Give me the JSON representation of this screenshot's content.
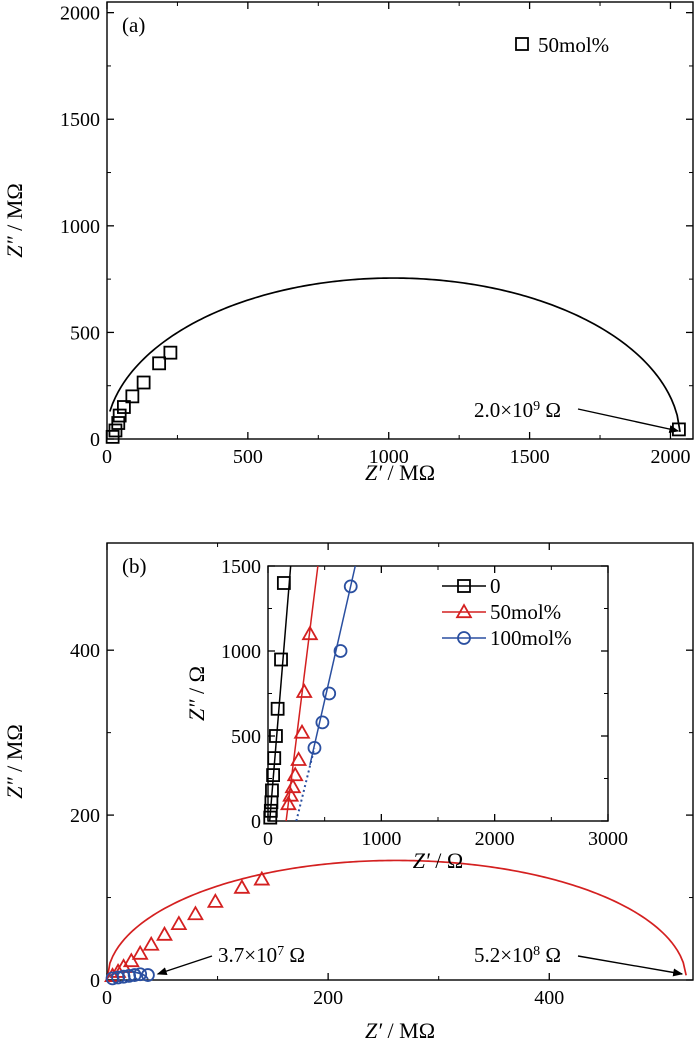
{
  "chart_data": [
    {
      "panel_label": "(a)",
      "type": "scatter",
      "xlabel_var": "Z′",
      "xlabel_unit": " / MΩ",
      "ylabel_var": "Z″",
      "ylabel_unit": " / MΩ",
      "xlim": [
        0,
        2080
      ],
      "ylim": [
        0,
        2050
      ],
      "xticks": [
        0,
        500,
        1000,
        1500,
        2000
      ],
      "yticks": [
        0,
        500,
        1000,
        1500,
        2000
      ],
      "legend": [
        {
          "name": "50mol%",
          "marker": "square",
          "color": "#000000"
        }
      ],
      "series": [
        {
          "name": "50mol%",
          "marker": "square",
          "color": "#000000",
          "points": [
            [
              20,
              10
            ],
            [
              30,
              40
            ],
            [
              40,
              75
            ],
            [
              45,
              110
            ],
            [
              60,
              150
            ],
            [
              90,
              200
            ],
            [
              130,
              265
            ],
            [
              185,
              355
            ],
            [
              225,
              405
            ],
            [
              2030,
              45
            ]
          ]
        }
      ],
      "fit": {
        "type": "arc",
        "color": "#000000",
        "center": 1015,
        "radius": 1020,
        "peak": 755
      },
      "annotations": [
        {
          "mantissa": "2.0×10",
          "exp": "9",
          "unit": " Ω",
          "target_x": 2035,
          "target_y": 0
        }
      ]
    },
    {
      "panel_label": "(b)",
      "type": "scatter",
      "xlabel_var": "Z′",
      "xlabel_unit": " / MΩ",
      "ylabel_var": "Z″",
      "ylabel_unit": " / MΩ",
      "xlim": [
        0,
        530
      ],
      "ylim": [
        0,
        530
      ],
      "xticks": [
        0,
        200,
        400
      ],
      "yticks": [
        0,
        200,
        400
      ],
      "series": [
        {
          "name": "50mol%",
          "marker": "triangle",
          "color": "#d42020",
          "points": [
            [
              5,
              5
            ],
            [
              10,
              10
            ],
            [
              15,
              16
            ],
            [
              22,
              23
            ],
            [
              30,
              32
            ],
            [
              40,
              43
            ],
            [
              52,
              55
            ],
            [
              65,
              68
            ],
            [
              80,
              80
            ],
            [
              98,
              95
            ],
            [
              122,
              112
            ],
            [
              140,
              122
            ]
          ]
        },
        {
          "name": "100mol%",
          "marker": "circle",
          "color": "#2a4fa0",
          "points": [
            [
              5,
              2
            ],
            [
              10,
              3
            ],
            [
              15,
              4
            ],
            [
              20,
              5
            ],
            [
              25,
              6
            ],
            [
              30,
              7
            ],
            [
              37,
              6
            ]
          ]
        }
      ],
      "fits": [
        {
          "type": "arc",
          "color": "#d42020",
          "center": 262,
          "radius": 262,
          "peak": 145
        },
        {
          "type": "arc",
          "color": "#2a4fa0",
          "center": 18.5,
          "radius": 18.5,
          "peak": 10
        }
      ],
      "annotations": [
        {
          "mantissa": "3.7×10",
          "exp": "7",
          "unit": " Ω",
          "target_x": 35,
          "target_y": 0
        },
        {
          "mantissa": "5.2×10",
          "exp": "8",
          "unit": " Ω",
          "target_x": 522,
          "target_y": 0
        }
      ],
      "inset": {
        "type": "scatter",
        "xlabel_var": "Z′",
        "xlabel_unit": " / Ω",
        "ylabel_var": "Z″",
        "ylabel_unit": " / Ω",
        "xlim": [
          0,
          3000
        ],
        "ylim": [
          0,
          1500
        ],
        "xticks": [
          0,
          1000,
          2000,
          3000
        ],
        "yticks": [
          0,
          500,
          1000,
          1500
        ],
        "legend": [
          {
            "name": "0",
            "marker": "square",
            "color": "#000000"
          },
          {
            "name": "50mol%",
            "marker": "triangle",
            "color": "#d42020"
          },
          {
            "name": "100mol%",
            "marker": "circle",
            "color": "#2a4fa0"
          }
        ],
        "series": [
          {
            "name": "0",
            "marker": "square",
            "color": "#000000",
            "points": [
              [
                20,
                20
              ],
              [
                25,
                60
              ],
              [
                30,
                110
              ],
              [
                35,
                180
              ],
              [
                45,
                270
              ],
              [
                55,
                370
              ],
              [
                70,
                500
              ],
              [
                85,
                660
              ],
              [
                115,
                950
              ],
              [
                140,
                1400
              ]
            ]
          },
          {
            "name": "50mol%",
            "marker": "triangle",
            "color": "#d42020",
            "points": [
              [
                180,
                100
              ],
              [
                200,
                150
              ],
              [
                220,
                200
              ],
              [
                240,
                270
              ],
              [
                270,
                360
              ],
              [
                300,
                520
              ],
              [
                320,
                760
              ],
              [
                370,
                1100
              ]
            ]
          },
          {
            "name": "100mol%",
            "marker": "circle",
            "color": "#2a4fa0",
            "points": [
              [
                410,
                430
              ],
              [
                480,
                580
              ],
              [
                540,
                750
              ],
              [
                640,
                1000
              ],
              [
                730,
                1380
              ]
            ]
          }
        ],
        "lines": [
          {
            "color": "#000000",
            "style": "solid",
            "x": [
              15,
              200
            ],
            "y": [
              0,
              1500
            ]
          },
          {
            "color": "#d42020",
            "style": "solid",
            "x": [
              160,
              440
            ],
            "y": [
              0,
              1500
            ]
          },
          {
            "color": "#2a4fa0",
            "style": "solid",
            "x": [
              370,
              770
            ],
            "y": [
              330,
              1500
            ]
          },
          {
            "color": "#2a4fa0",
            "style": "dotted",
            "x": [
              250,
              410
            ],
            "y": [
              0,
              430
            ]
          }
        ]
      }
    }
  ]
}
